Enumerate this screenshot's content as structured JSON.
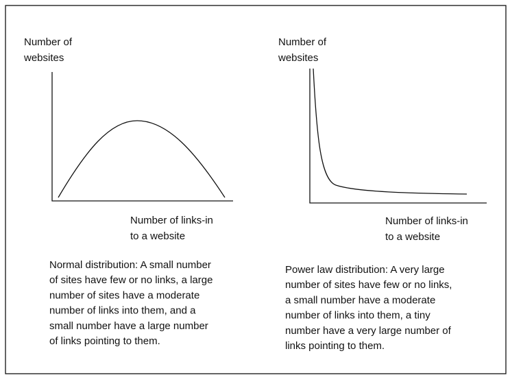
{
  "panels": [
    {
      "y_label": [
        "Number of",
        "websites"
      ],
      "x_label": [
        "Number of links-in",
        "to a website"
      ],
      "caption": [
        "Normal distribution: A small number",
        "of sites have few or no links, a large",
        "number of sites have a moderate",
        "number of links into them, and a",
        "small number have a large number",
        "of links pointing to them."
      ]
    },
    {
      "y_label": [
        "Number of",
        "websites"
      ],
      "x_label": [
        "Number of links-in",
        "to a website"
      ],
      "caption": [
        "Power law distribution: A very large",
        "number of sites have few or no links,",
        "a small number have a moderate",
        "number of links into them, a tiny",
        "number have a very large number of",
        "links pointing to them."
      ]
    }
  ]
}
